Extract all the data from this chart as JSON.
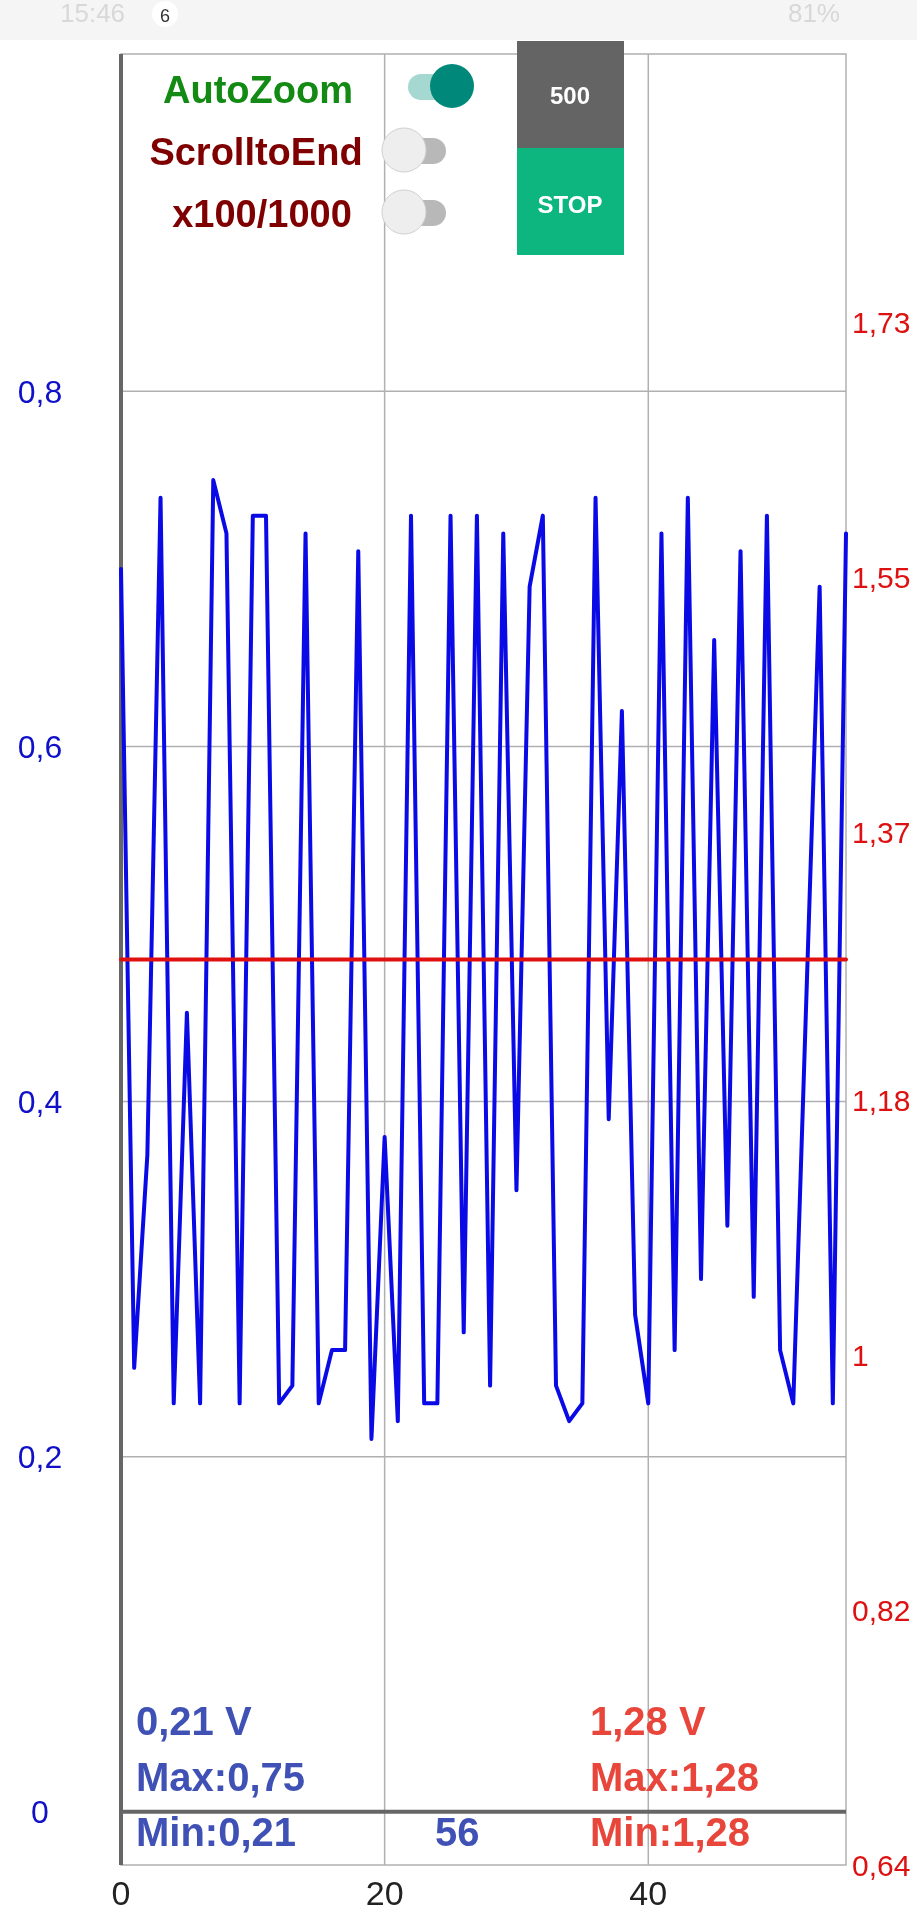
{
  "chart_data": {
    "type": "line",
    "x": [
      0,
      1,
      2,
      3,
      4,
      5,
      6,
      7,
      8,
      9,
      10,
      11,
      12,
      13,
      14,
      15,
      16,
      17,
      18,
      19,
      20,
      21,
      22,
      23,
      24,
      25,
      26,
      27,
      28,
      29,
      30,
      31,
      32,
      33,
      34,
      35,
      36,
      37,
      38,
      39,
      40,
      41,
      42,
      43,
      44,
      45,
      46,
      47,
      48,
      49,
      50,
      51,
      52,
      53,
      54,
      55
    ],
    "series": [
      {
        "color": "#0a0ae6",
        "values": [
          0.7,
          0.25,
          0.37,
          0.74,
          0.23,
          0.45,
          0.23,
          0.75,
          0.72,
          0.23,
          0.73,
          0.73,
          0.23,
          0.24,
          0.72,
          0.23,
          0.26,
          0.26,
          0.71,
          0.21,
          0.38,
          0.22,
          0.73,
          0.23,
          0.23,
          0.73,
          0.27,
          0.73,
          0.24,
          0.72,
          0.35,
          0.69,
          0.73,
          0.24,
          0.22,
          0.23,
          0.74,
          0.39,
          0.62,
          0.28,
          0.23,
          0.72,
          0.26,
          0.74,
          0.3,
          0.66,
          0.33,
          0.71,
          0.29,
          0.73,
          0.26,
          0.23,
          0.46,
          0.69,
          0.23,
          0.72
        ]
      },
      {
        "color": "#e01010",
        "axis": "y2",
        "x": [
          0,
          55
        ],
        "values": [
          1.28,
          1.28
        ]
      }
    ],
    "xlim": [
      0,
      55
    ],
    "xticks": [
      0,
      20,
      40
    ],
    "ylim": [
      -0.03,
      0.99
    ],
    "yticks": [
      {
        "value": 0,
        "label": "0"
      },
      {
        "value": 0.2,
        "label": "0,2"
      },
      {
        "value": 0.4,
        "label": "0,4"
      },
      {
        "value": 0.6,
        "label": "0,6"
      },
      {
        "value": 0.8,
        "label": "0,8"
      }
    ],
    "y2lim": [
      0.64,
      1.92
    ],
    "y2ticks": [
      {
        "value": 0.64,
        "label": "0,64"
      },
      {
        "value": 0.82,
        "label": "0,82"
      },
      {
        "value": 1,
        "label": "1"
      },
      {
        "value": 1.18,
        "label": "1,18"
      },
      {
        "value": 1.37,
        "label": "1,37"
      },
      {
        "value": 1.55,
        "label": "1,55"
      },
      {
        "value": 1.73,
        "label": "1,73"
      }
    ],
    "grid": true,
    "annotations": [
      "AutoZoom",
      "ScrolltoEnd",
      "x100/1000",
      "500",
      "STOP",
      "0,21 V",
      "Max:0,75",
      "Min:0,21",
      "56",
      "1,28 V",
      "Max:1,28",
      "Min:1,28",
      "15:46",
      "6",
      "81%"
    ]
  }
}
